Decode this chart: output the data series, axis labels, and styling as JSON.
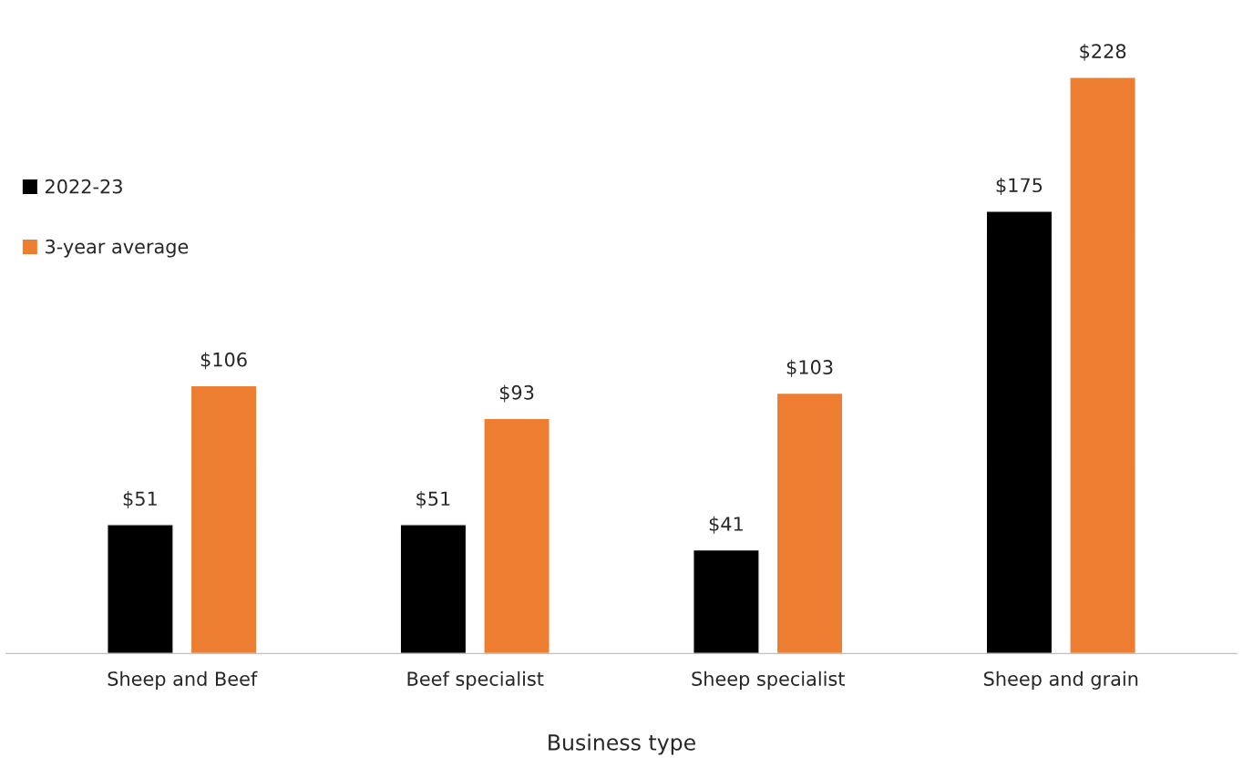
{
  "chart_data": {
    "type": "bar",
    "xlabel": "Business type",
    "categories": [
      "Sheep and Beef",
      "Beef specialist",
      "Sheep specialist",
      "Sheep and grain"
    ],
    "series": [
      {
        "name": "2022-23",
        "color": "#000000",
        "values": [
          51,
          51,
          41,
          175
        ],
        "value_labels": [
          "$51",
          "$51",
          "$41",
          "$175"
        ]
      },
      {
        "name": "3-year average",
        "color": "#ed7d31",
        "values": [
          106,
          93,
          103,
          228
        ],
        "value_labels": [
          "$106",
          "$93",
          "$103",
          "$228"
        ]
      }
    ],
    "tick_labels": "x",
    "legend": "left",
    "grid": false
  }
}
